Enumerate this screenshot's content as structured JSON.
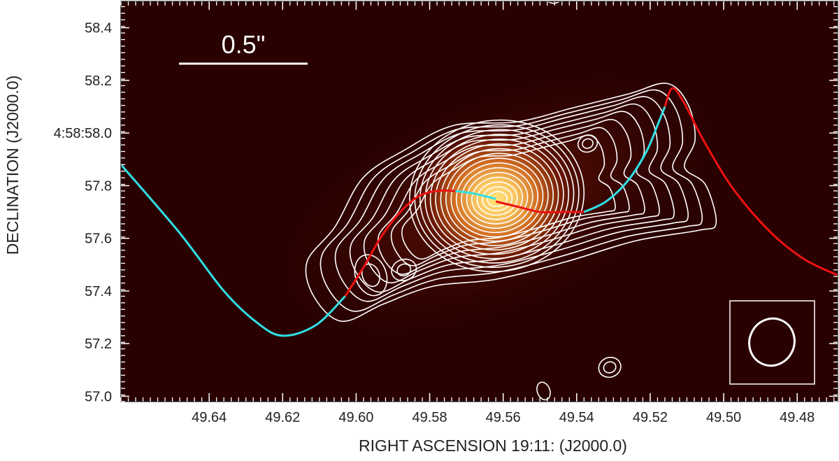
{
  "chart_data": {
    "type": "contour",
    "xlabel": "RIGHT ASCENSION 19:11: (J2000.0)",
    "ylabel": "DECLINATION (J2000.0)",
    "xlim": [
      49.664,
      49.469
    ],
    "ylim": [
      56.98,
      58.5
    ],
    "x_ticks": [
      {
        "value": 49.64,
        "label": "49.64"
      },
      {
        "value": 49.62,
        "label": "49.62"
      },
      {
        "value": 49.6,
        "label": "49.60"
      },
      {
        "value": 49.58,
        "label": "49.58"
      },
      {
        "value": 49.56,
        "label": "49.56"
      },
      {
        "value": 49.54,
        "label": "49.54"
      },
      {
        "value": 49.52,
        "label": "49.52"
      },
      {
        "value": 49.5,
        "label": "49.50"
      },
      {
        "value": 49.48,
        "label": "49.48"
      }
    ],
    "y_ticks": [
      {
        "value": 57.0,
        "label": "57.0"
      },
      {
        "value": 57.2,
        "label": "57.2"
      },
      {
        "value": 57.4,
        "label": "57.4"
      },
      {
        "value": 57.6,
        "label": "57.6"
      },
      {
        "value": 57.8,
        "label": "57.8"
      },
      {
        "value": 58.0,
        "label": "4:58:58.0"
      },
      {
        "value": 58.2,
        "label": "58.2"
      },
      {
        "value": 58.4,
        "label": "58.4"
      }
    ],
    "scale_bar": {
      "label": "0.5\"",
      "length_arcsec": 0.5
    },
    "colors": {
      "background": "#2a0101",
      "core": "#ffe27a",
      "contour": "#ffffff",
      "model_cyan": "#2fe0e6",
      "model_red": "#ee1111"
    },
    "source": {
      "ra": 49.562,
      "dec": 57.75
    },
    "knots": [
      {
        "ra": 49.596,
        "dec": 57.46
      },
      {
        "ra": 49.587,
        "dec": 57.48
      },
      {
        "ra": 49.537,
        "dec": 57.96
      },
      {
        "ra": 49.531,
        "dec": 57.11
      },
      {
        "ra": 49.549,
        "dec": 57.02
      },
      {
        "ra": 49.546,
        "dec": 58.52
      }
    ],
    "jet_model": [
      {
        "name": "approaching",
        "color": "cyan",
        "points": [
          [
            49.664,
            57.88
          ],
          [
            49.648,
            57.62
          ],
          [
            49.636,
            57.4
          ],
          [
            49.627,
            57.28
          ],
          [
            49.62,
            57.23
          ],
          [
            49.611,
            57.27
          ],
          [
            49.603,
            57.38
          ]
        ]
      },
      {
        "name": "receding",
        "color": "red",
        "points": [
          [
            49.603,
            57.38
          ],
          [
            49.598,
            57.49
          ],
          [
            49.593,
            57.61
          ],
          [
            49.588,
            57.7
          ],
          [
            49.583,
            57.76
          ],
          [
            49.578,
            57.78
          ],
          [
            49.573,
            57.78
          ]
        ]
      },
      {
        "name": "approaching",
        "color": "cyan",
        "points": [
          [
            49.573,
            57.78
          ],
          [
            49.568,
            57.77
          ],
          [
            49.562,
            57.75
          ]
        ]
      },
      {
        "name": "receding",
        "color": "red",
        "points": [
          [
            49.562,
            57.74
          ],
          [
            49.556,
            57.72
          ],
          [
            49.55,
            57.7
          ],
          [
            49.544,
            57.7
          ],
          [
            49.538,
            57.7
          ]
        ]
      },
      {
        "name": "approaching",
        "color": "cyan",
        "points": [
          [
            49.538,
            57.7
          ],
          [
            49.532,
            57.74
          ],
          [
            49.526,
            57.82
          ],
          [
            49.521,
            57.93
          ],
          [
            49.518,
            58.03
          ],
          [
            49.516,
            58.1
          ]
        ]
      },
      {
        "name": "receding",
        "color": "red",
        "points": [
          [
            49.516,
            58.1
          ],
          [
            49.514,
            58.17
          ],
          [
            49.511,
            58.12
          ],
          [
            49.505,
            57.96
          ],
          [
            49.497,
            57.78
          ],
          [
            49.487,
            57.62
          ],
          [
            49.478,
            57.52
          ],
          [
            49.469,
            57.46
          ]
        ]
      }
    ]
  }
}
